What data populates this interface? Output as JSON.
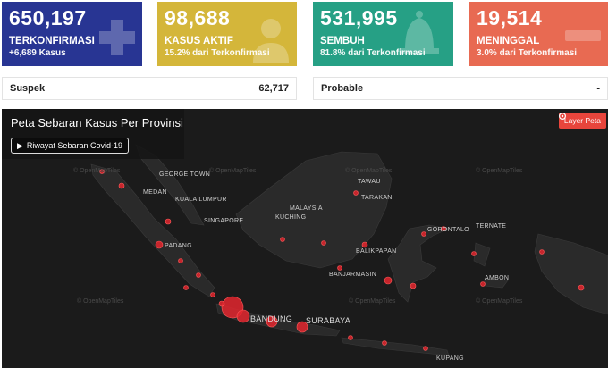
{
  "cards": [
    {
      "value": "650,197",
      "label": "TERKONFIRMASI",
      "sub": "+6,689 Kasus",
      "icon": "plus-icon"
    },
    {
      "value": "98,688",
      "label": "KASUS AKTIF",
      "sub": "15.2% dari Terkonfirmasi",
      "icon": "doctor-icon"
    },
    {
      "value": "531,995",
      "label": "SEMBUH",
      "sub": "81.8% dari Terkonfirmasi",
      "icon": "bell-icon"
    },
    {
      "value": "19,514",
      "label": "MENINGGAL",
      "sub": "3.0% dari Terkonfirmasi",
      "icon": "minus-icon"
    }
  ],
  "stats": {
    "suspek_label": "Suspek",
    "suspek_value": "62,717",
    "probable_label": "Probable",
    "probable_value": "-"
  },
  "map": {
    "title": "Peta Sebaran Kasus Per Provinsi",
    "history_button": "Riwayat Sebaran Covid-19",
    "layer_button": "Layer Peta",
    "attribution": "© OpenMapTiles",
    "cities": {
      "medan": "MEDAN",
      "george_town": "GEORGE TOWN",
      "kuala_lumpur": "KUALA LUMPUR",
      "singapore": "SINGAPORE",
      "padang": "PADANG",
      "kuching": "KUCHING",
      "malaysia": "MALAYSIA",
      "tawau": "TAWAU",
      "tarakan": "TARAKAN",
      "gorontalo": "GORONTALO",
      "ternate": "TERNATE",
      "balikpapan": "BALIKPAPAN",
      "banjarmasin": "BANJARMASIN",
      "ambon": "AMBON",
      "bandung": "BANDUNG",
      "surabaya": "SURABAYA",
      "kupang": "KUPANG"
    }
  }
}
